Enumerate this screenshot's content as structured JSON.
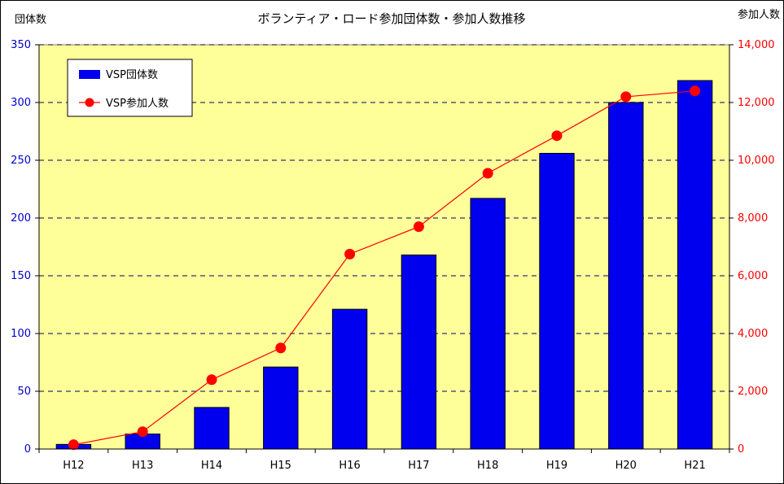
{
  "chart_data": {
    "type": "bar",
    "title": "ボランティア・ロード参加団体数・参加人数推移",
    "categories": [
      "H12",
      "H13",
      "H14",
      "H15",
      "H16",
      "H17",
      "H18",
      "H19",
      "H20",
      "H21"
    ],
    "series": [
      {
        "name": "VSP団体数",
        "type": "bar",
        "axis": "left",
        "color": "#0000ee",
        "values": [
          4,
          13,
          36,
          71,
          121,
          168,
          217,
          256,
          300,
          319
        ]
      },
      {
        "name": "VSP参加人数",
        "type": "line",
        "axis": "right",
        "color": "#ff0000",
        "values": [
          150,
          600,
          2400,
          3500,
          6750,
          7700,
          9550,
          10850,
          12200,
          12400
        ]
      }
    ],
    "y_left": {
      "label": "団体数",
      "min": 0,
      "max": 350,
      "ticks": [
        0,
        50,
        100,
        150,
        200,
        250,
        300,
        350
      ],
      "tick_color": "#0000cc"
    },
    "y_right": {
      "label": "参加人数",
      "min": 0,
      "max": 14000,
      "ticks": [
        0,
        2000,
        4000,
        6000,
        8000,
        10000,
        12000,
        14000
      ],
      "tick_labels": [
        "0",
        "2,000",
        "4,000",
        "6,000",
        "8,000",
        "10,000",
        "12,000",
        "14,000"
      ],
      "tick_color": "#ff0000"
    },
    "grid": true,
    "legend": "top-left",
    "plot_background": "#ffff99"
  }
}
